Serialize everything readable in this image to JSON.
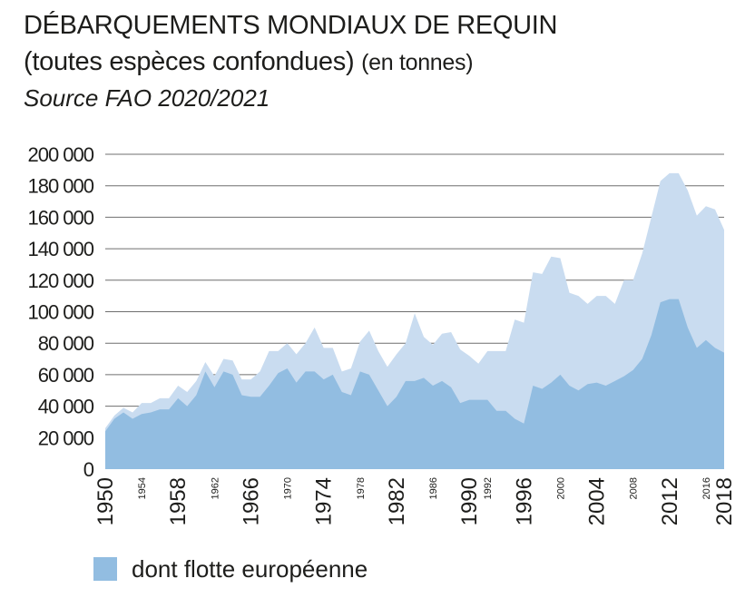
{
  "header": {
    "title": "DÉBARQUEMENTS MONDIAUX DE REQUIN",
    "subtitle_main": "(toutes espèces confondues)",
    "subtitle_note": "(en tonnes)",
    "source": "Source FAO 2020/2021"
  },
  "colors": {
    "total_area": "#c9dcf0",
    "europe_area": "#92bde1",
    "grid": "#6f6f6f",
    "text": "#1d1d1b"
  },
  "legend": {
    "label": "dont flotte européenne"
  },
  "chart_data": {
    "type": "area",
    "title": "DÉBARQUEMENTS MONDIAUX DE REQUIN",
    "xlim": [
      1950,
      2018
    ],
    "ylim": [
      0,
      200000
    ],
    "grid": "horizontal",
    "legend_position": "bottom-left",
    "y_ticks": [
      {
        "value": 0,
        "label": "0"
      },
      {
        "value": 20000,
        "label": "20 000"
      },
      {
        "value": 40000,
        "label": "40 000"
      },
      {
        "value": 60000,
        "label": "60 000"
      },
      {
        "value": 80000,
        "label": "80 000"
      },
      {
        "value": 100000,
        "label": "100 000"
      },
      {
        "value": 120000,
        "label": "120 000"
      },
      {
        "value": 140000,
        "label": "140 000"
      },
      {
        "value": 160000,
        "label": "160 000"
      },
      {
        "value": 180000,
        "label": "180 000"
      },
      {
        "value": 200000,
        "label": "200 000"
      }
    ],
    "x_ticks": [
      {
        "value": 1950,
        "label": "1950",
        "size": "large"
      },
      {
        "value": 1954,
        "label": "1954",
        "size": "small"
      },
      {
        "value": 1958,
        "label": "1958",
        "size": "large"
      },
      {
        "value": 1962,
        "label": "1962",
        "size": "small"
      },
      {
        "value": 1966,
        "label": "1966",
        "size": "large"
      },
      {
        "value": 1970,
        "label": "1970",
        "size": "small"
      },
      {
        "value": 1974,
        "label": "1974",
        "size": "large"
      },
      {
        "value": 1978,
        "label": "1978",
        "size": "small"
      },
      {
        "value": 1982,
        "label": "1982",
        "size": "large"
      },
      {
        "value": 1986,
        "label": "1986",
        "size": "small"
      },
      {
        "value": 1990,
        "label": "1990",
        "size": "large"
      },
      {
        "value": 1992,
        "label": "1992",
        "size": "small"
      },
      {
        "value": 1996,
        "label": "1996",
        "size": "large"
      },
      {
        "value": 2000,
        "label": "2000",
        "size": "small"
      },
      {
        "value": 2004,
        "label": "2004",
        "size": "large"
      },
      {
        "value": 2008,
        "label": "2008",
        "size": "small"
      },
      {
        "value": 2012,
        "label": "2012",
        "size": "large"
      },
      {
        "value": 2016,
        "label": "2016",
        "size": "small"
      },
      {
        "value": 2018,
        "label": "2018",
        "size": "large"
      }
    ],
    "x": [
      1950,
      1951,
      1952,
      1953,
      1954,
      1955,
      1956,
      1957,
      1958,
      1959,
      1960,
      1961,
      1962,
      1963,
      1964,
      1965,
      1966,
      1967,
      1968,
      1969,
      1970,
      1971,
      1972,
      1973,
      1974,
      1975,
      1976,
      1977,
      1978,
      1979,
      1980,
      1981,
      1982,
      1983,
      1984,
      1985,
      1986,
      1987,
      1988,
      1989,
      1990,
      1991,
      1992,
      1993,
      1994,
      1995,
      1996,
      1997,
      1998,
      1999,
      2000,
      2001,
      2002,
      2003,
      2004,
      2005,
      2006,
      2007,
      2008,
      2009,
      2010,
      2011,
      2012,
      2013,
      2014,
      2015,
      2016,
      2017,
      2018
    ],
    "series": [
      {
        "values": [
          26000,
          34000,
          39000,
          36000,
          42000,
          42000,
          45000,
          45000,
          53000,
          49000,
          56000,
          68000,
          59000,
          70000,
          69000,
          57000,
          57000,
          62000,
          75000,
          75000,
          80000,
          73000,
          80000,
          90000,
          77000,
          77000,
          62000,
          64000,
          81000,
          88000,
          75000,
          65000,
          73000,
          80000,
          99000,
          84000,
          79000,
          86000,
          87000,
          76000,
          72000,
          67000,
          75000,
          75000,
          75000,
          95000,
          93000,
          125000,
          124000,
          135000,
          134000,
          112000,
          110000,
          105000,
          110000,
          110000,
          105000,
          120000,
          120000,
          137000,
          160000,
          183000,
          188000,
          188000,
          177000,
          161000,
          167000,
          165000,
          152000
        ]
      },
      {
        "name": "dont flotte européenne",
        "values": [
          24000,
          32000,
          36000,
          32000,
          35000,
          36000,
          38000,
          38000,
          45000,
          40000,
          47000,
          62000,
          52000,
          62000,
          60000,
          47000,
          46000,
          46000,
          53000,
          61000,
          64000,
          55000,
          62000,
          62000,
          57000,
          60000,
          49000,
          47000,
          62000,
          60000,
          50000,
          40000,
          46000,
          56000,
          56000,
          58000,
          53000,
          56000,
          52000,
          42000,
          44000,
          44000,
          44000,
          37000,
          37000,
          32000,
          29000,
          53000,
          51000,
          55000,
          60000,
          53000,
          50000,
          54000,
          55000,
          53000,
          56000,
          59000,
          63000,
          70000,
          85000,
          106000,
          108000,
          108000,
          90000,
          77000,
          82000,
          77000,
          74000
        ]
      }
    ]
  }
}
